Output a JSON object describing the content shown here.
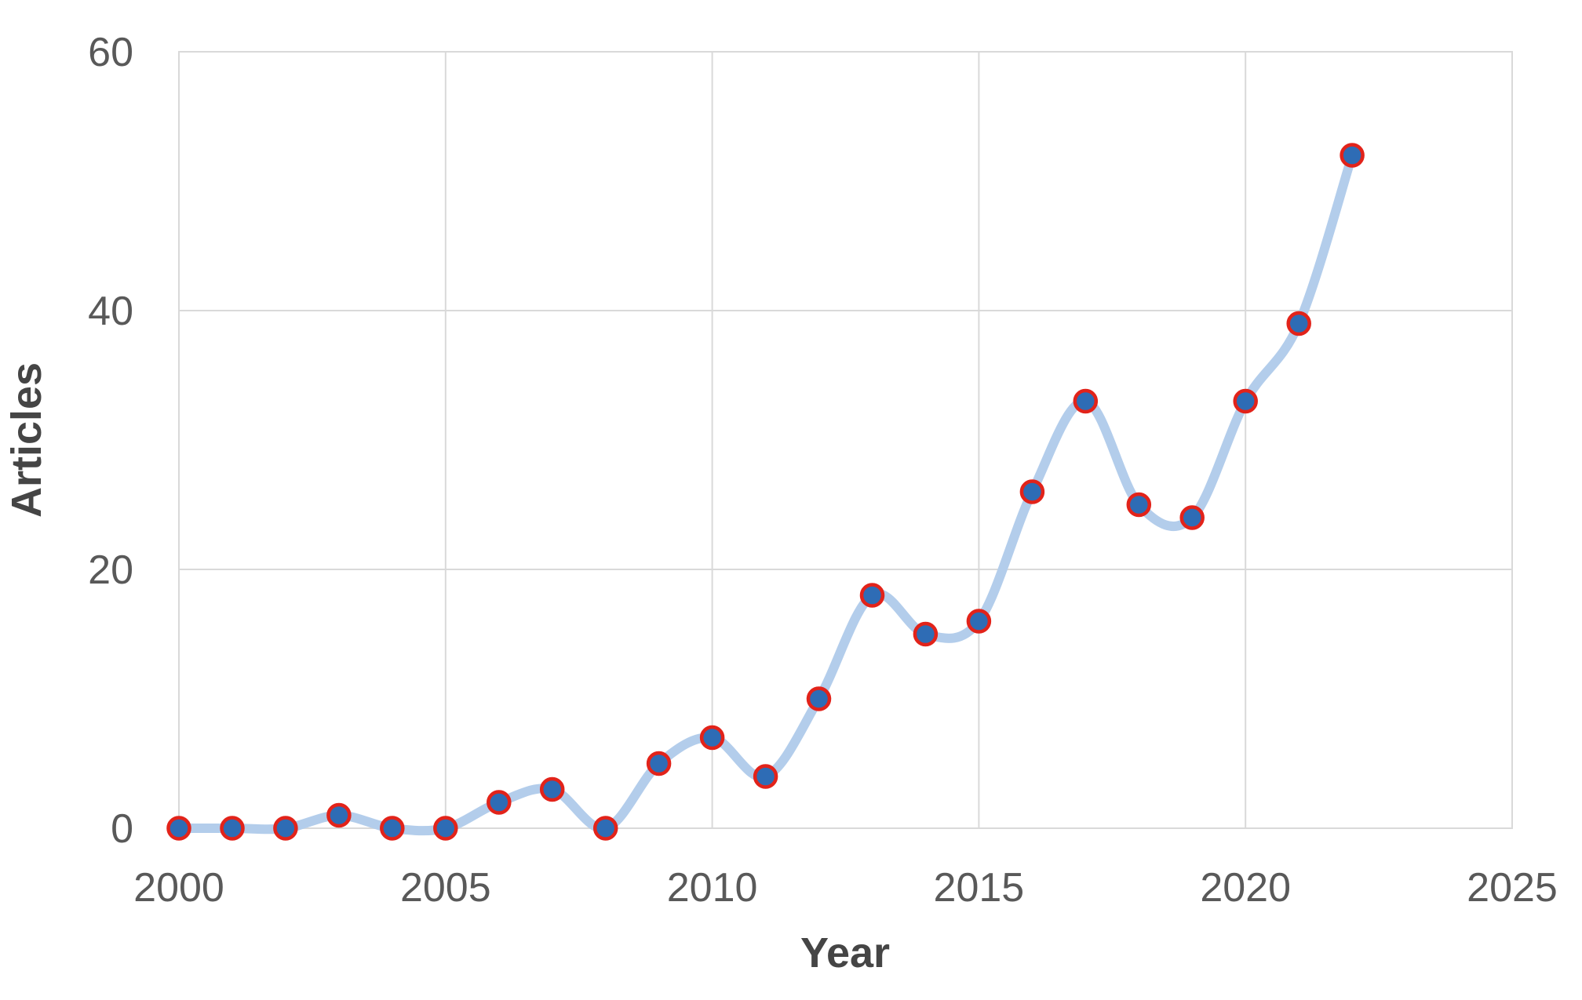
{
  "chart_data": {
    "type": "line",
    "title": "",
    "xlabel": "Year",
    "ylabel": "Articles",
    "x": [
      2000,
      2001,
      2002,
      2003,
      2004,
      2005,
      2006,
      2007,
      2008,
      2009,
      2010,
      2011,
      2012,
      2013,
      2014,
      2015,
      2016,
      2017,
      2018,
      2019,
      2020,
      2021,
      2022
    ],
    "values": [
      0,
      0,
      0,
      1,
      0,
      0,
      2,
      3,
      0,
      5,
      7,
      4,
      10,
      18,
      15,
      16,
      26,
      33,
      25,
      24,
      33,
      39,
      52
    ],
    "xlim": [
      2000,
      2025
    ],
    "ylim": [
      0,
      60
    ],
    "x_ticks": [
      2000,
      2005,
      2010,
      2015,
      2020,
      2025
    ],
    "y_ticks": [
      0,
      20,
      40,
      60
    ],
    "grid": true,
    "legend_position": "none",
    "smoothed": true,
    "colors": {
      "line": "#b3cdeb",
      "marker_fill": "#2e6cb5",
      "marker_stroke": "#e2231a",
      "gridline": "#d9d9d9",
      "tick_text": "#595959",
      "axis_title_text": "#454545",
      "background": "#ffffff"
    }
  }
}
